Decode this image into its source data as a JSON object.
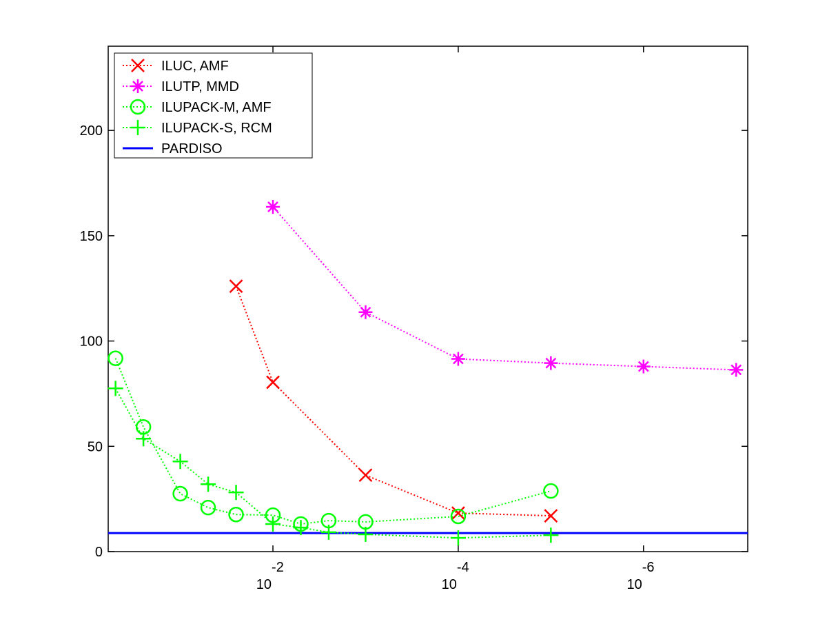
{
  "chart_data": {
    "type": "line",
    "xscale": "log",
    "xreversed": true,
    "xlim": [
      0.6,
      7.5e-08
    ],
    "xticks": [
      {
        "value": 0.01,
        "label": "10",
        "exponent": "-2"
      },
      {
        "value": 0.0001,
        "label": "10",
        "exponent": "-4"
      },
      {
        "value": 1e-06,
        "label": "10",
        "exponent": "-6"
      }
    ],
    "ylim": [
      0,
      240
    ],
    "yticks": [
      0,
      50,
      100,
      150,
      200
    ],
    "legend": "upper left",
    "series": [
      {
        "name": "ILUC, AMF",
        "color": "#ff0000",
        "marker": "x",
        "linestyle": "dotted",
        "x": [
          0.025,
          0.01,
          0.001,
          0.0001,
          1e-05
        ],
        "values": [
          126,
          80.4,
          36.3,
          18.3,
          17
        ]
      },
      {
        "name": "ILUTP, MMD",
        "color": "#ff00ff",
        "marker": "*",
        "linestyle": "dotted",
        "x": [
          0.01,
          0.001,
          0.0001,
          1e-05,
          1e-06,
          1e-07
        ],
        "values": [
          163.7,
          113.7,
          91.5,
          89.5,
          87.9,
          86.3
        ]
      },
      {
        "name": "ILUPACK-M, AMF",
        "color": "#00ff00",
        "marker": "o",
        "linestyle": "dotted",
        "x": [
          0.5,
          0.25,
          0.1,
          0.05,
          0.025,
          0.01,
          0.005,
          0.0025,
          0.001,
          0.0001,
          1e-05
        ],
        "values": [
          91.8,
          59.2,
          27.5,
          20.9,
          17.6,
          17.3,
          13.1,
          14.7,
          14.1,
          16.7,
          28.8
        ]
      },
      {
        "name": "ILUPACK-S, RCM",
        "color": "#00ff00",
        "marker": "+",
        "linestyle": "dotted",
        "x": [
          0.5,
          0.25,
          0.1,
          0.05,
          0.025,
          0.01,
          0.005,
          0.0025,
          0.001,
          0.0001,
          1e-05
        ],
        "values": [
          77.5,
          53.6,
          42.8,
          32,
          28.1,
          13.1,
          11.4,
          9.2,
          8.2,
          6.5,
          7.8
        ]
      }
    ],
    "reference_line": {
      "name": "PARDISO",
      "color": "#0000ff",
      "value": 8.8
    }
  }
}
